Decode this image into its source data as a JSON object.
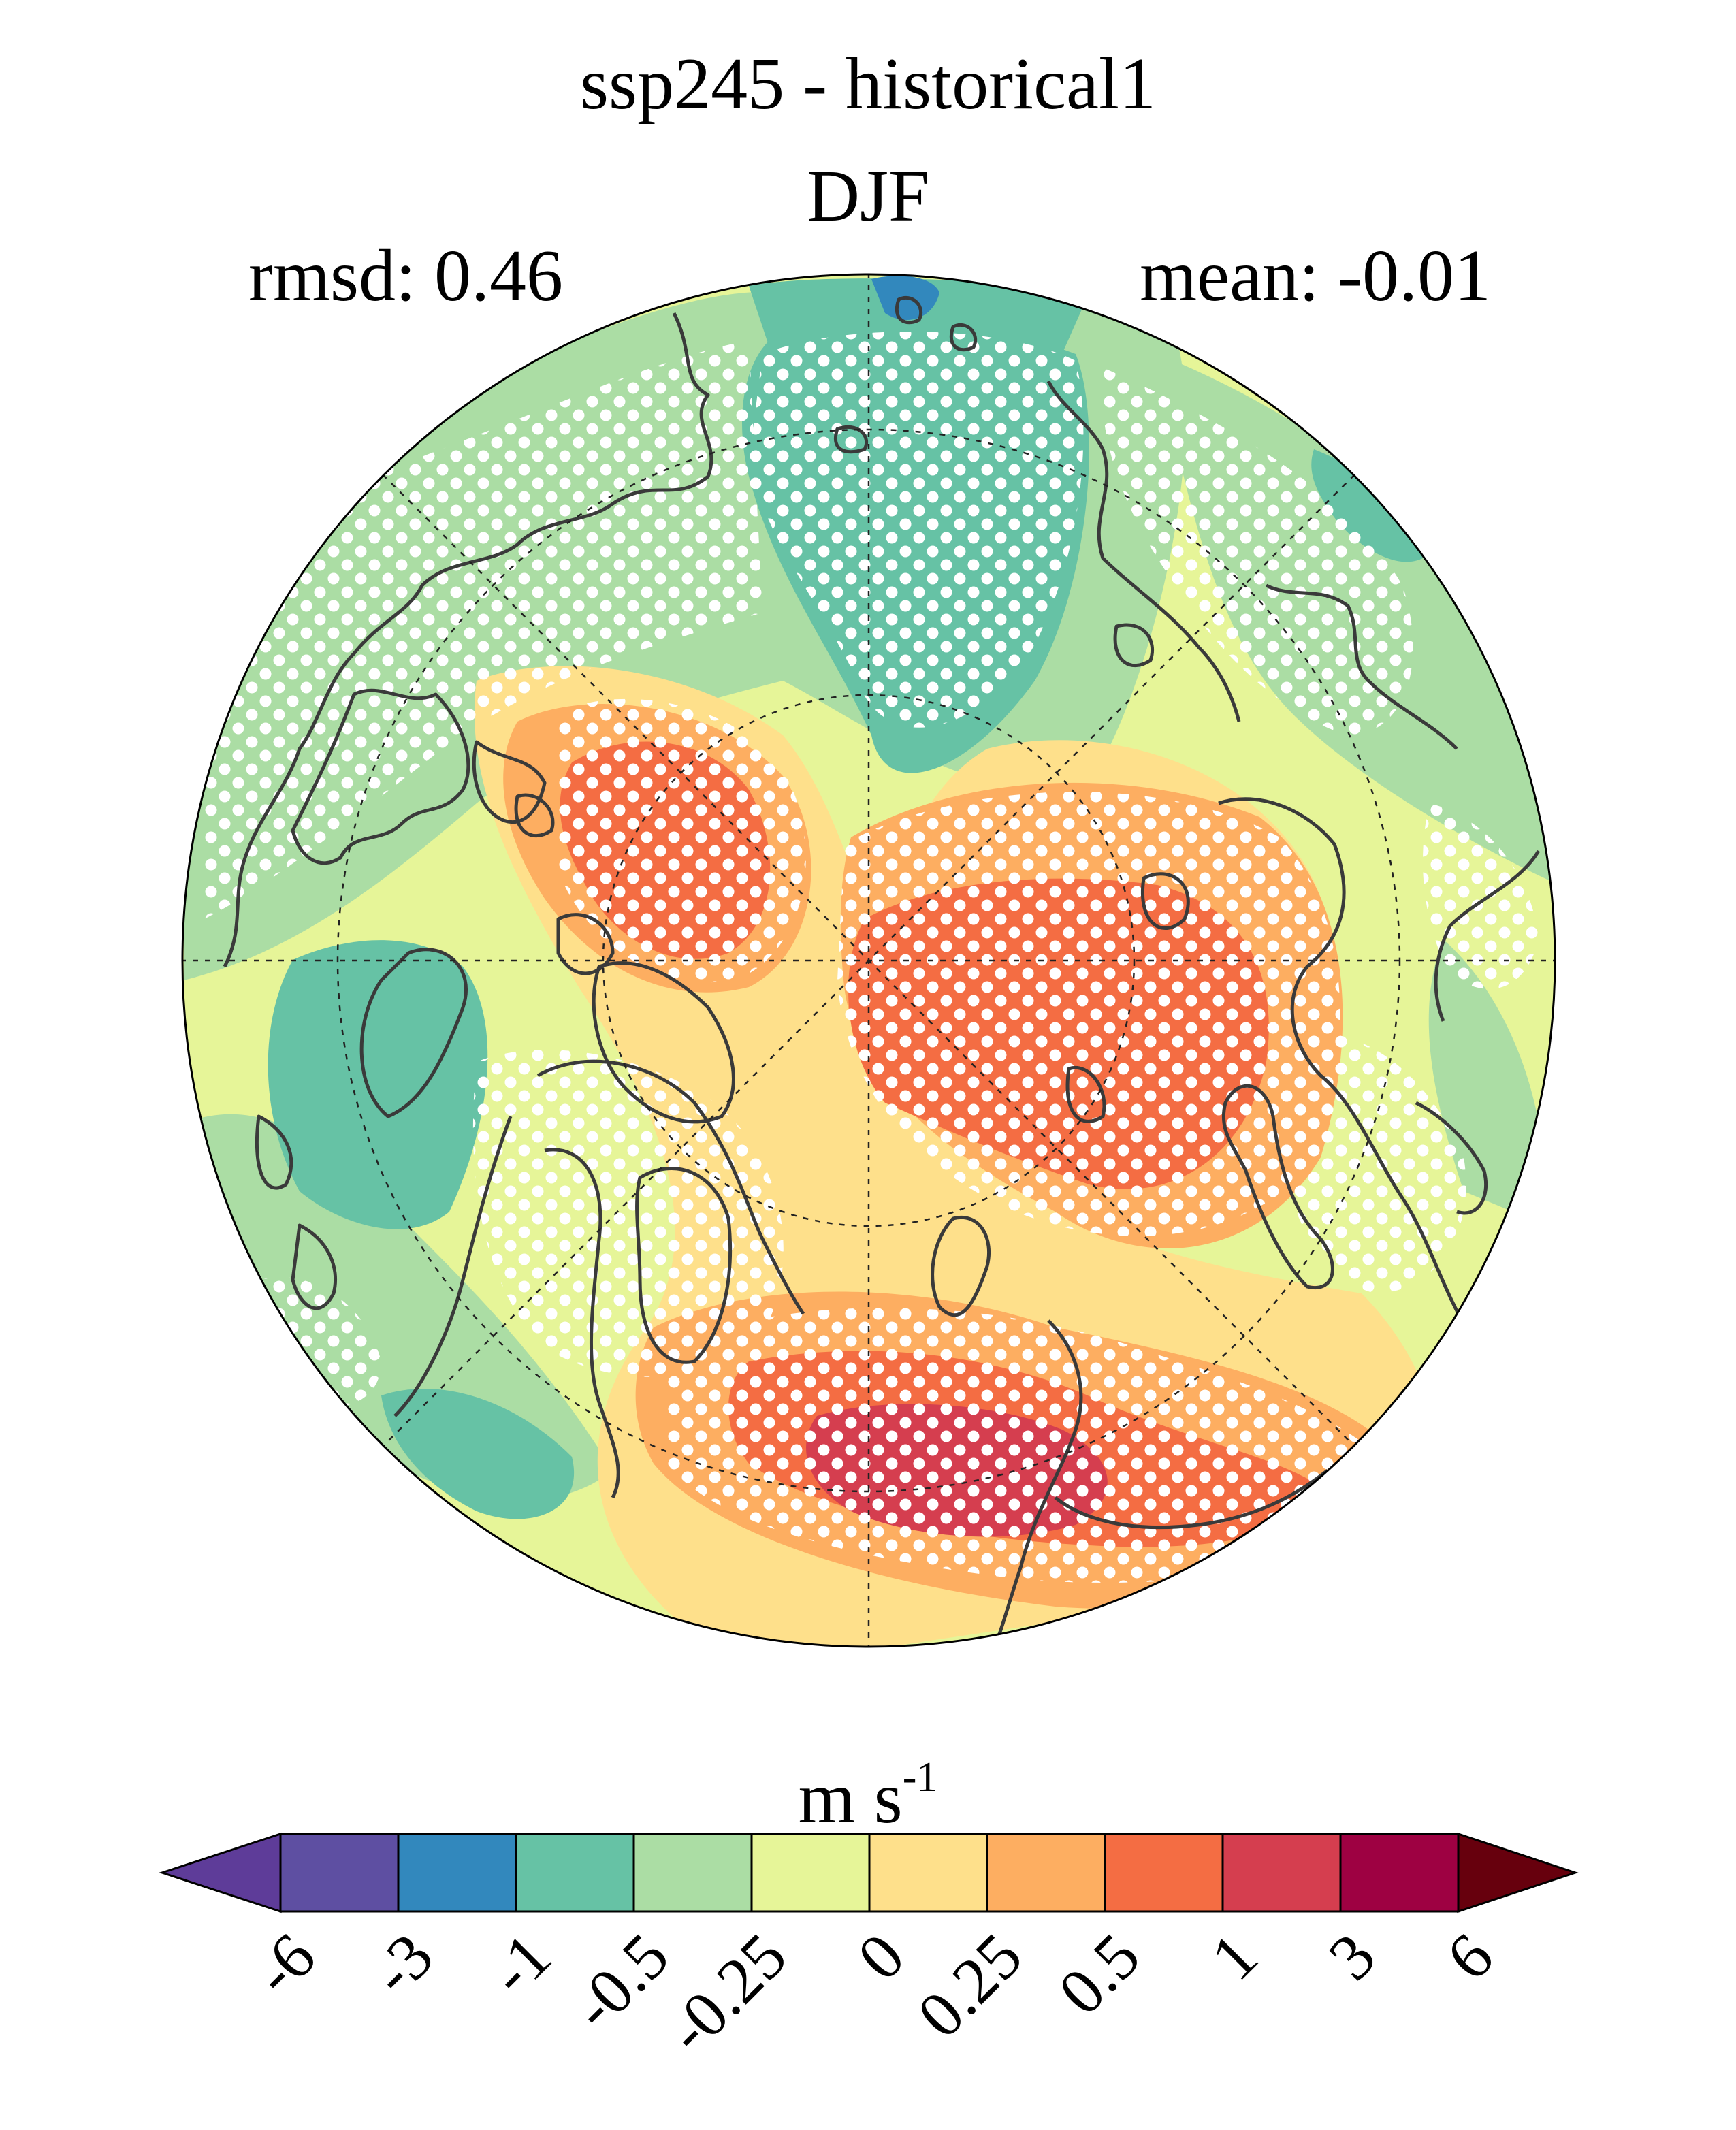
{
  "title": "ssp245 - historical1",
  "season": "DJF",
  "stats": {
    "rmsd": "rmsd: 0.46",
    "mean": "mean: -0.01"
  },
  "units": {
    "base": "m s",
    "exponent": "-1"
  },
  "colorbar": {
    "ticks": [
      "-6",
      "-3",
      "-1",
      "-0.5",
      "-0.25",
      "0",
      "0.25",
      "0.5",
      "1",
      "3",
      "6"
    ],
    "colors": [
      "#5e4fa2",
      "#3288bd",
      "#66c2a5",
      "#abdda4",
      "#e6f598",
      "#fee08b",
      "#fdae61",
      "#f46d43",
      "#d53e4f",
      "#9e0142"
    ],
    "under_color": "#5e3c99",
    "over_color": "#67000d"
  },
  "map": {
    "projection": "north polar stereographic",
    "stippling": "white dots mark significant differences",
    "graticule": "dashed latitude circles and meridians"
  }
}
